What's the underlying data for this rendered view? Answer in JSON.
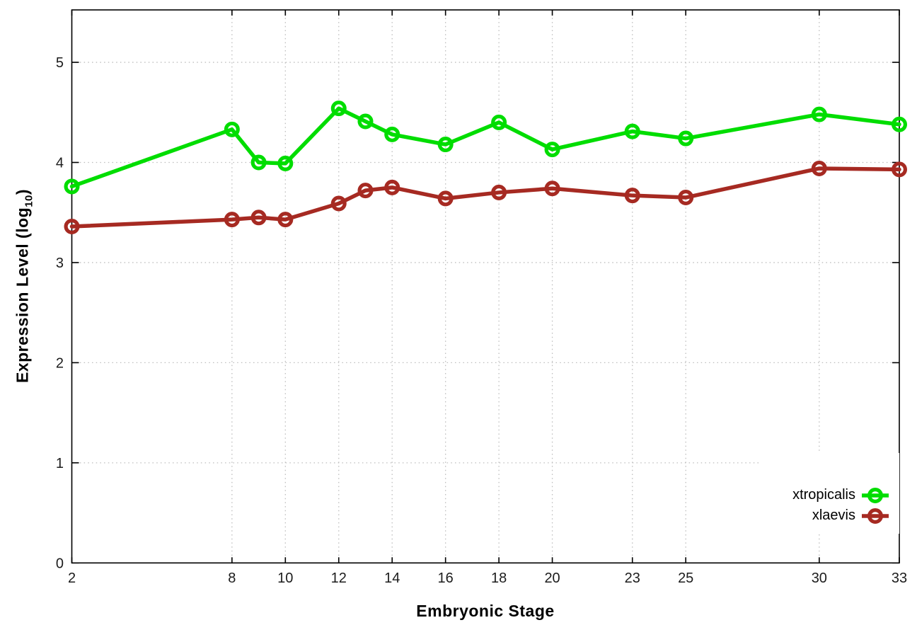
{
  "chart_data": {
    "type": "line",
    "title": "",
    "xlabel": "Embryonic Stage",
    "ylabel": "Expression Level (log10)",
    "ylabel_parts": {
      "pre": "Expression Level (log",
      "sub": "10",
      "post": ")"
    },
    "xlim": [
      2,
      33
    ],
    "ylim": [
      0,
      5
    ],
    "xticks": [
      2,
      8,
      10,
      12,
      14,
      16,
      18,
      20,
      23,
      25,
      30,
      33
    ],
    "yticks": [
      0,
      1,
      2,
      3,
      4,
      5
    ],
    "grid": "dotted",
    "legend_position": "inside-bottom-right",
    "x": [
      2,
      8,
      9,
      10,
      12,
      13,
      14,
      16,
      18,
      20,
      23,
      25,
      30,
      33
    ],
    "series": [
      {
        "name": "xtropicalis",
        "color": "#00dd00",
        "values": [
          3.76,
          4.33,
          4.0,
          3.99,
          4.54,
          4.41,
          4.28,
          4.18,
          4.4,
          4.13,
          4.31,
          4.24,
          4.48,
          4.38
        ]
      },
      {
        "name": "xlaevis",
        "color": "#a62a22",
        "values": [
          3.36,
          3.43,
          3.45,
          3.43,
          3.59,
          3.72,
          3.75,
          3.64,
          3.7,
          3.74,
          3.67,
          3.65,
          3.94,
          3.93
        ]
      }
    ]
  },
  "colors": {
    "axis": "#000000",
    "grid": "#bdbdbd",
    "tick_text": "#1c1c1c",
    "background": "#ffffff"
  }
}
